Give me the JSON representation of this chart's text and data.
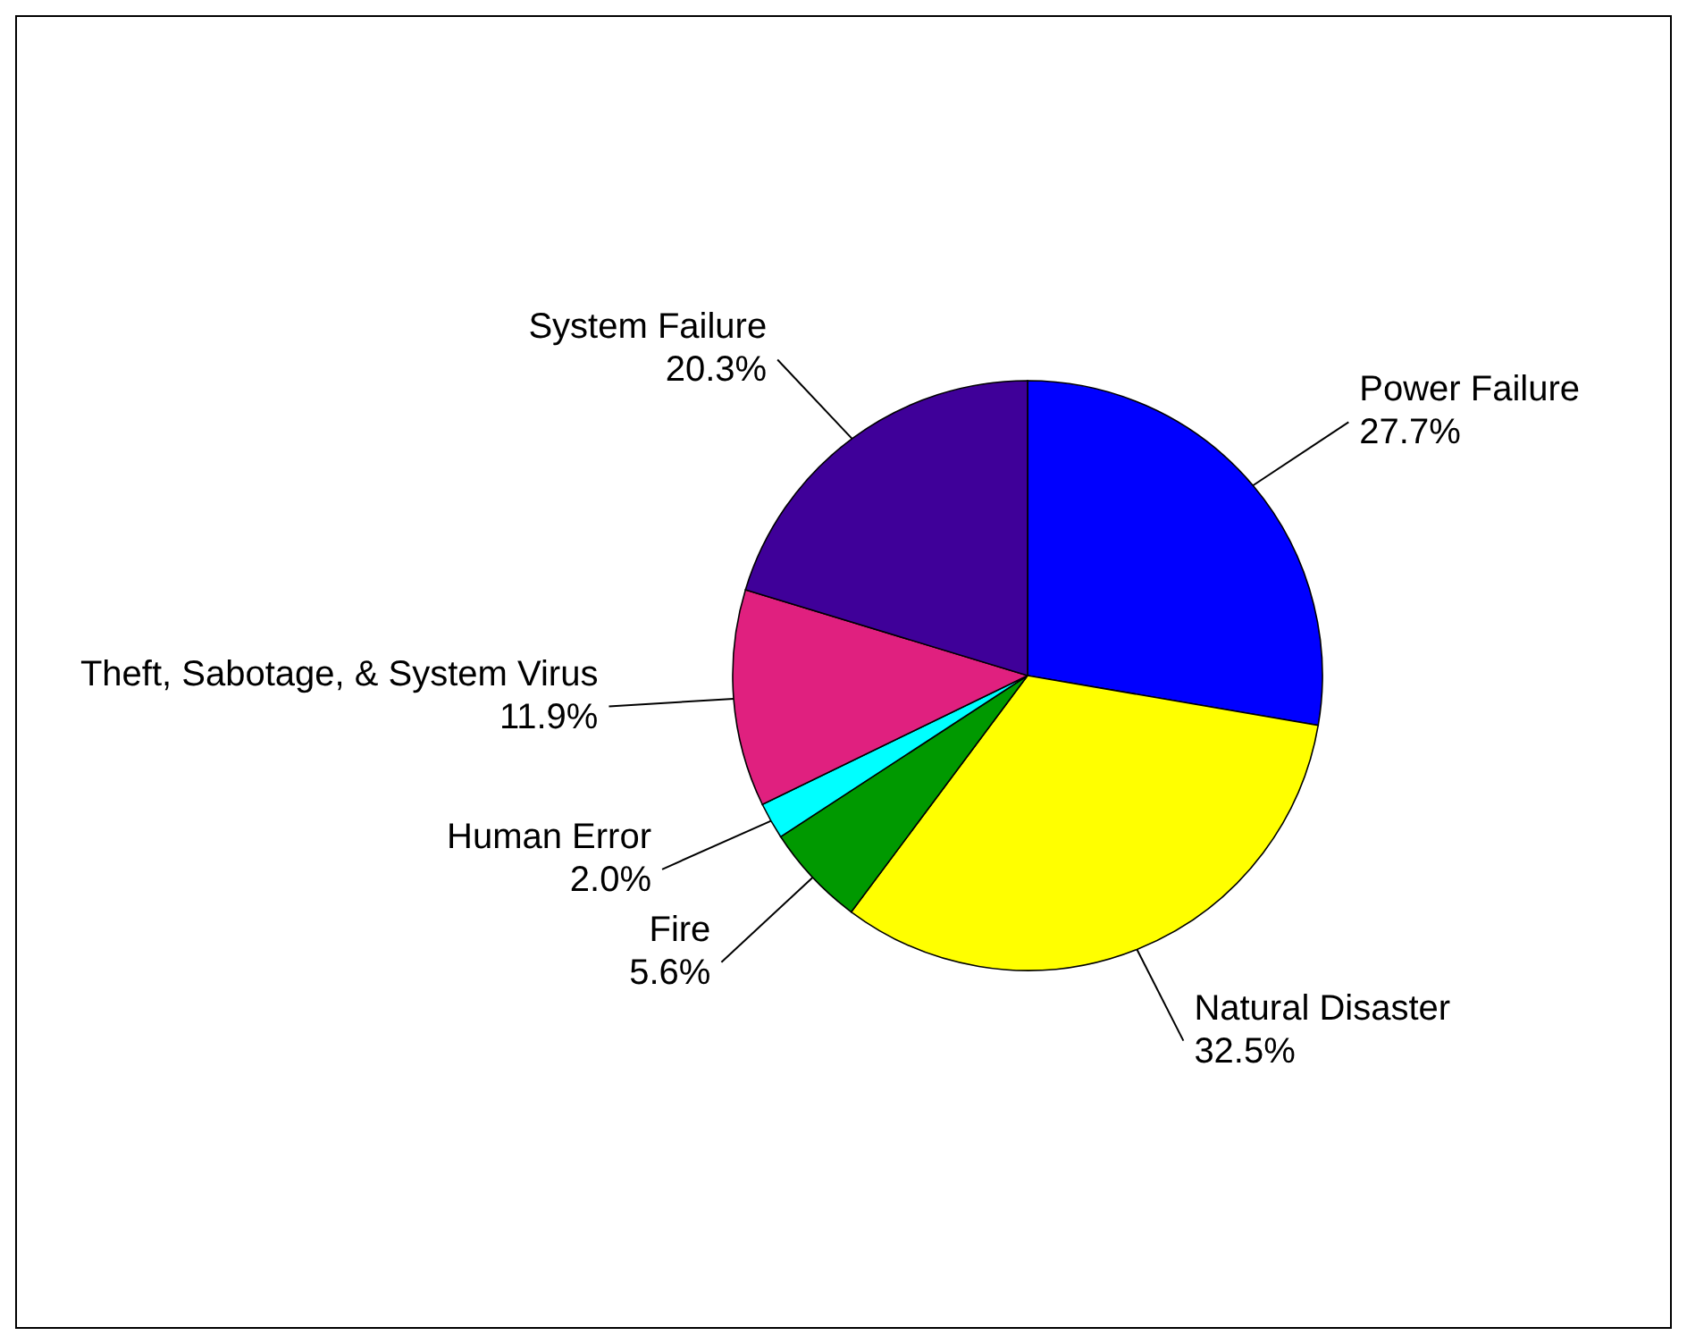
{
  "chart_data": {
    "type": "pie",
    "categories": [
      "Power Failure",
      "Natural Disaster",
      "Fire",
      "Human Error",
      "Theft, Sabotage, & System Virus",
      "System Failure"
    ],
    "values": [
      27.7,
      32.5,
      5.6,
      2.0,
      11.9,
      20.3
    ],
    "value_labels": [
      "27.7%",
      "32.5%",
      "5.6%",
      "2.0%",
      "11.9%",
      "20.3%"
    ],
    "colors": [
      "#0000ff",
      "#ffff00",
      "#009900",
      "#00ffff",
      "#e0207f",
      "#3f0099"
    ]
  }
}
